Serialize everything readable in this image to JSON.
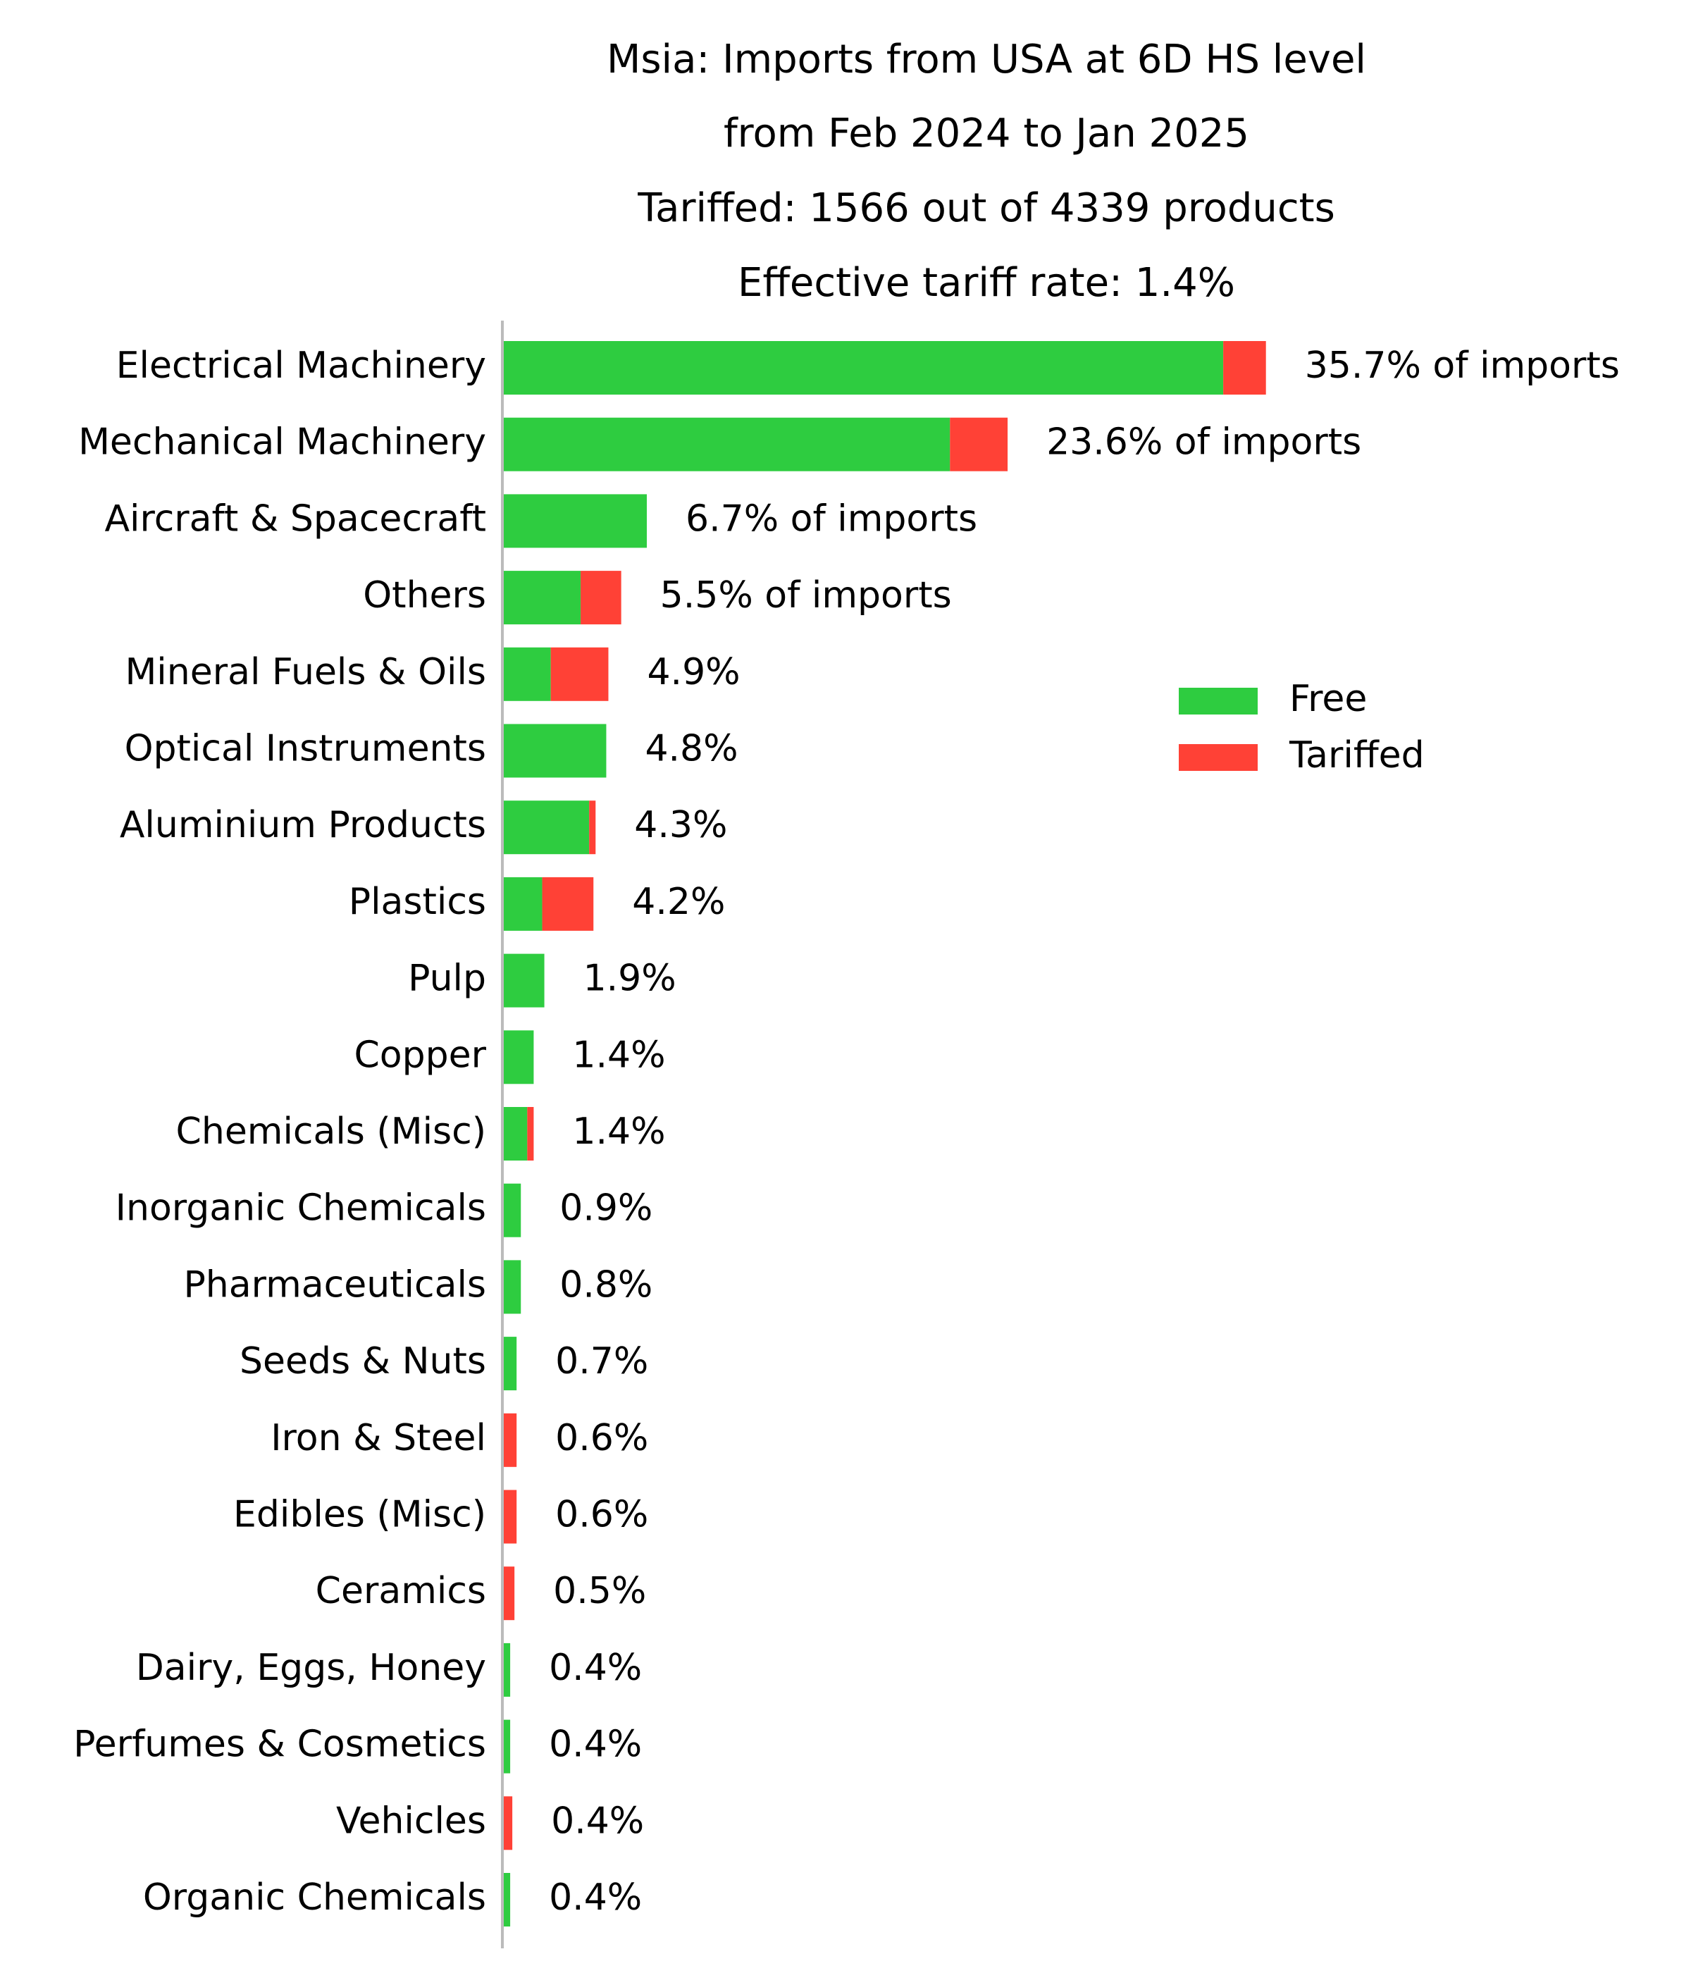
{
  "chart_data": {
    "type": "bar",
    "orientation": "horizontal",
    "stacked": true,
    "title_lines": [
      "Msia: Imports from USA at 6D HS level",
      "from Feb 2024 to Jan 2025",
      "Tariffed: 1566 out of 4339 products",
      "Effective tariff rate: 1.4%"
    ],
    "categories": [
      "Electrical Machinery",
      "Mechanical Machinery",
      "Aircraft & Spacecraft",
      "Others",
      "Mineral Fuels & Oils",
      "Optical Instruments",
      "Aluminium Products",
      "Plastics",
      "Pulp",
      "Copper",
      "Chemicals (Misc)",
      "Inorganic Chemicals",
      "Pharmaceuticals",
      "Seeds & Nuts",
      "Iron & Steel",
      "Edibles (Misc)",
      "Ceramics",
      "Dairy, Eggs, Honey",
      "Perfumes & Cosmetics",
      "Vehicles",
      "Organic Chemicals"
    ],
    "series": [
      {
        "name": "Free",
        "color": "#2ecc40",
        "values": [
          33.7,
          20.9,
          6.7,
          3.6,
          2.2,
          4.8,
          4.0,
          1.8,
          1.9,
          1.4,
          1.1,
          0.8,
          0.8,
          0.6,
          0.0,
          0.0,
          0.0,
          0.3,
          0.3,
          0.0,
          0.3
        ]
      },
      {
        "name": "Tariffed",
        "color": "#ff4136",
        "values": [
          2.0,
          2.7,
          0.0,
          1.9,
          2.7,
          0.0,
          0.3,
          2.4,
          0.0,
          0.0,
          0.3,
          0.0,
          0.0,
          0.0,
          0.6,
          0.6,
          0.5,
          0.0,
          0.0,
          0.4,
          0.0
        ]
      }
    ],
    "value_labels": [
      "35.7% of imports",
      "23.6% of imports",
      "6.7% of imports",
      "5.5% of imports",
      "4.9%",
      "4.8%",
      "4.3%",
      "4.2%",
      "1.9%",
      "1.4%",
      "1.4%",
      "0.9%",
      "0.8%",
      "0.7%",
      "0.6%",
      "0.6%",
      "0.5%",
      "0.4%",
      "0.4%",
      "0.4%",
      "0.4%"
    ],
    "xlim": [
      0,
      36
    ],
    "grid": false,
    "legend_position": "right"
  }
}
